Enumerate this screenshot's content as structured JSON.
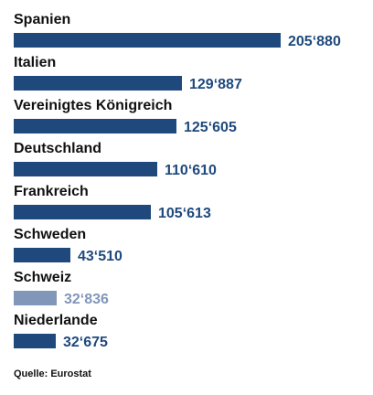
{
  "chart_data": {
    "type": "bar",
    "orientation": "horizontal",
    "categories": [
      "Spanien",
      "Italien",
      "Vereinigtes Königreich",
      "Deutschland",
      "Frankreich",
      "Schweden",
      "Schweiz",
      "Niederlande"
    ],
    "values": [
      205880,
      129887,
      125605,
      110610,
      105613,
      43510,
      32836,
      32675
    ],
    "value_labels": [
      "205‘880",
      "129‘887",
      "125‘605",
      "110‘610",
      "105‘613",
      "43‘510",
      "32‘836",
      "32‘675"
    ],
    "highlighted_category": "Schweiz",
    "colors": {
      "bar": "#1f497d",
      "bar_highlight": "#8197b9",
      "label": "#1f497d",
      "label_highlight": "#8197b9",
      "category_text": "#111111"
    },
    "grid": false,
    "legend": "none"
  },
  "source": "Quelle: Eurostat"
}
